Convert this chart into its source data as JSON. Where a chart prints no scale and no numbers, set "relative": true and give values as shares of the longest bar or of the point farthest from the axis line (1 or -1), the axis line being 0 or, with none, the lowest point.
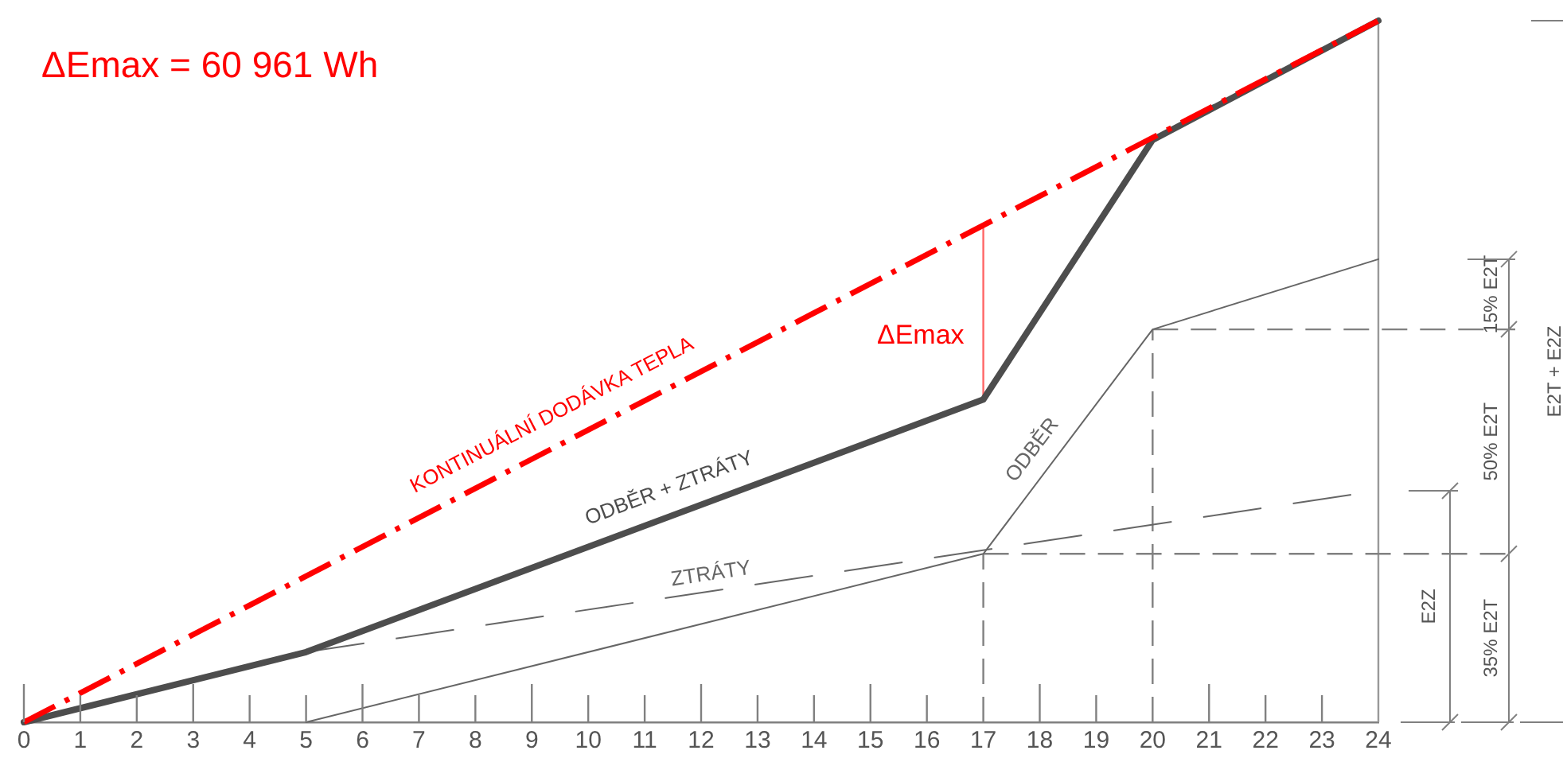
{
  "chart_data": {
    "type": "line",
    "title": "ΔEmax = 60 961 Wh",
    "relative": true,
    "xlim": [
      0,
      24
    ],
    "xticks": [
      0,
      1,
      2,
      3,
      4,
      5,
      6,
      7,
      8,
      9,
      10,
      11,
      12,
      13,
      14,
      15,
      16,
      17,
      18,
      19,
      20,
      21,
      22,
      23,
      24
    ],
    "tick_labels": "x",
    "marker": "none",
    "series": [
      {
        "name": "KONTINUÁLNÍ DODÁVKA TEPLA",
        "color": "#ff0000",
        "line_style": "dashdot",
        "x": [
          0,
          24
        ],
        "values": [
          0,
          1
        ]
      },
      {
        "name": "ODBĚR + ZTRÁTY",
        "color": "#4d4d4d",
        "x": [
          0,
          5,
          17,
          20,
          24
        ],
        "values": [
          0,
          0.1,
          0.46,
          0.83,
          1
        ]
      },
      {
        "name": "ZTRÁTY",
        "color": "#666666",
        "line_style": "dashed",
        "x": [
          5,
          24
        ],
        "values": [
          0.1,
          0.33
        ]
      },
      {
        "name": "ODBĚR",
        "color": "#666666",
        "x": [
          5,
          17,
          20,
          24
        ],
        "values": [
          0,
          0.24,
          0.56,
          0.66
        ]
      },
      {
        "color": "#ff6666",
        "x": [
          17,
          17
        ],
        "values": [
          0.46,
          0.71
        ]
      }
    ],
    "ref_lines": [
      {
        "axis": "x",
        "value": 17,
        "color": "#808080",
        "line_style": "dashed"
      },
      {
        "axis": "x",
        "value": 20,
        "color": "#808080",
        "line_style": "dashed"
      },
      {
        "axis": "x",
        "value": 24,
        "color": "#999999"
      },
      {
        "axis": "y",
        "value": 0.24,
        "color": "#808080",
        "line_style": "dashed"
      },
      {
        "axis": "y",
        "value": 0.56,
        "color": "#808080",
        "line_style": "dashed"
      }
    ],
    "annotations": [
      {
        "text": "ΔEmax",
        "x": 17,
        "y": 0.55
      },
      "E2Z",
      "35% E2T",
      "50% E2T",
      "15% E2T",
      "E2T + E2Z"
    ]
  }
}
